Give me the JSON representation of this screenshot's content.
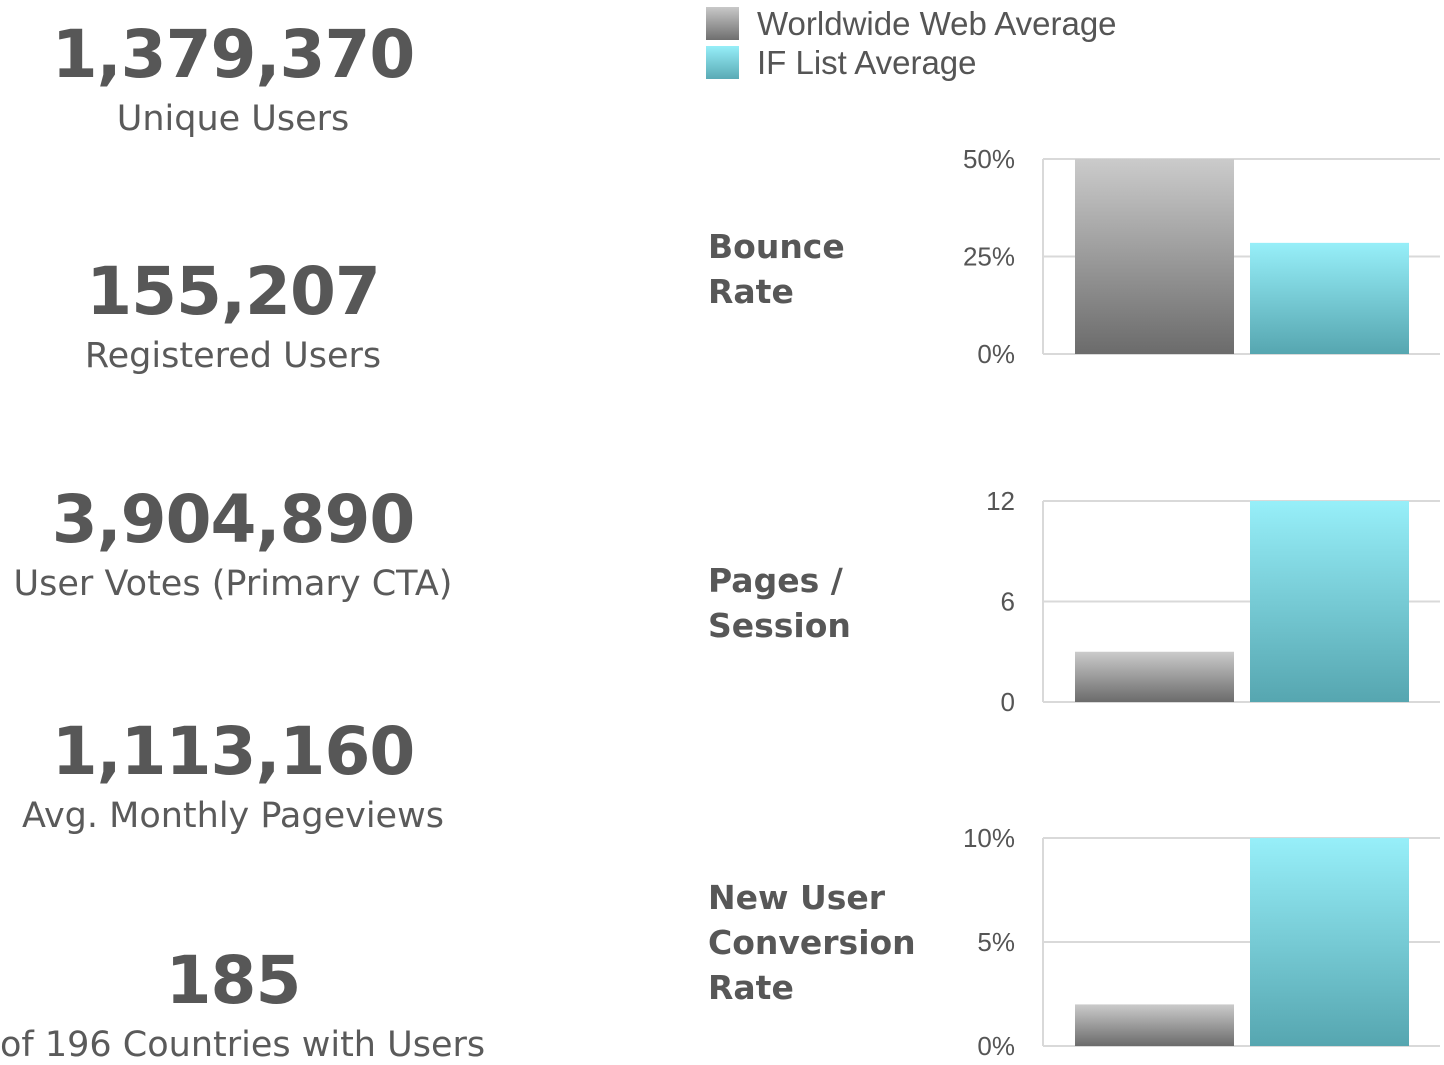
{
  "stats": [
    {
      "value": "1,379,370",
      "label": "Unique Users"
    },
    {
      "value": "155,207",
      "label": "Registered Users"
    },
    {
      "value": "3,904,890",
      "label": "User Votes (Primary CTA)"
    },
    {
      "value": "1,113,160",
      "label": "Avg. Monthly Pageviews"
    },
    {
      "value": "185",
      "label": "of 196 Countries with Users"
    }
  ],
  "legend": [
    {
      "label": "Worldwide Web Average",
      "color": "#8a8a8a"
    },
    {
      "label": "IF List Average",
      "color": "#62c5d0"
    }
  ],
  "metrics": [
    {
      "label_lines": [
        "Bounce",
        "Rate"
      ]
    },
    {
      "label_lines": [
        "Pages /",
        "Session"
      ]
    },
    {
      "label_lines": [
        "New User",
        "Conversion",
        "Rate"
      ]
    }
  ],
  "chart_data": [
    {
      "type": "bar",
      "categories": [
        "Bounce Rate"
      ],
      "series": [
        {
          "name": "Worldwide Web Average",
          "values": [
            50
          ]
        },
        {
          "name": "IF List Average",
          "values": [
            28.5
          ]
        }
      ],
      "ylim": [
        0,
        50
      ],
      "yticks": [
        "0%",
        "25%",
        "50%"
      ],
      "grid": true
    },
    {
      "type": "bar",
      "categories": [
        "Pages / Session"
      ],
      "series": [
        {
          "name": "Worldwide Web Average",
          "values": [
            3
          ]
        },
        {
          "name": "IF List Average",
          "values": [
            12
          ]
        }
      ],
      "ylim": [
        0,
        12
      ],
      "yticks": [
        "0",
        "6",
        "12"
      ],
      "grid": true
    },
    {
      "type": "bar",
      "categories": [
        "New User Conversion Rate"
      ],
      "series": [
        {
          "name": "Worldwide Web Average",
          "values": [
            2
          ]
        },
        {
          "name": "IF List Average",
          "values": [
            10
          ]
        }
      ],
      "ylim": [
        0,
        10
      ],
      "yticks": [
        "0%",
        "5%",
        "10%"
      ],
      "grid": true
    }
  ]
}
